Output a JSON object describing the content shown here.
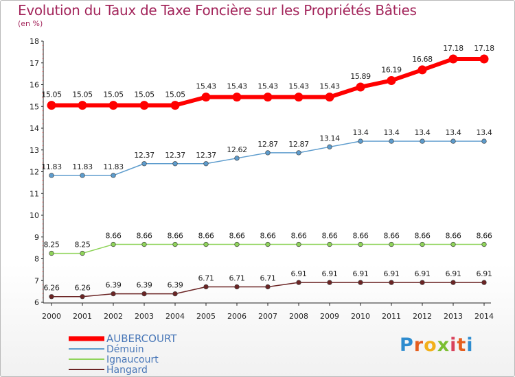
{
  "title": "Evolution du Taux de Taxe Foncière sur les Propriétés Bâties",
  "unit_label": "(en %)",
  "logo_text": "Proxiti",
  "chart_data": {
    "type": "line",
    "x": [
      "2000",
      "2001",
      "2002",
      "2003",
      "2004",
      "2005",
      "2006",
      "2007",
      "2008",
      "2009",
      "2010",
      "2011",
      "2012",
      "2013",
      "2014"
    ],
    "y_ticks": [
      "6",
      "7",
      "8",
      "9",
      "10",
      "11",
      "12",
      "13",
      "14",
      "15",
      "16",
      "17",
      "18"
    ],
    "ylim": [
      6,
      18
    ],
    "grid": false,
    "legend_position": "bottom-left",
    "series": [
      {
        "name": "AUBERCOURT",
        "color": "#ff0000",
        "values": [
          15.05,
          15.05,
          15.05,
          15.05,
          15.05,
          15.43,
          15.43,
          15.43,
          15.43,
          15.43,
          15.89,
          16.19,
          16.68,
          17.18,
          17.18
        ],
        "labels": [
          "15.05",
          "15.05",
          "15.05",
          "15.05",
          "15.05",
          "15.43",
          "15.43",
          "15.43",
          "15.43",
          "15.43",
          "15.89",
          "16.19",
          "16.68",
          "17.18",
          "17.18"
        ]
      },
      {
        "name": "Démuin",
        "color": "#5d9ccd",
        "values": [
          11.83,
          11.83,
          11.83,
          12.37,
          12.37,
          12.37,
          12.62,
          12.87,
          12.87,
          13.14,
          13.4,
          13.4,
          13.4,
          13.4,
          13.4
        ],
        "labels": [
          "11.83",
          "11.83",
          "11.83",
          "12.37",
          "12.37",
          "12.37",
          "12.62",
          "12.87",
          "12.87",
          "13.14",
          "13.4",
          "13.4",
          "13.4",
          "13.4",
          "13.4"
        ]
      },
      {
        "name": "Ignaucourt",
        "color": "#8fd45a",
        "values": [
          8.25,
          8.25,
          8.66,
          8.66,
          8.66,
          8.66,
          8.66,
          8.66,
          8.66,
          8.66,
          8.66,
          8.66,
          8.66,
          8.66,
          8.66
        ],
        "labels": [
          "8.25",
          "8.25",
          "8.66",
          "8.66",
          "8.66",
          "8.66",
          "8.66",
          "8.66",
          "8.66",
          "8.66",
          "8.66",
          "8.66",
          "8.66",
          "8.66",
          "8.66"
        ]
      },
      {
        "name": "Hangard",
        "color": "#6b2424",
        "values": [
          6.26,
          6.26,
          6.39,
          6.39,
          6.39,
          6.71,
          6.71,
          6.71,
          6.91,
          6.91,
          6.91,
          6.91,
          6.91,
          6.91,
          6.91
        ],
        "labels": [
          "6.26",
          "6.26",
          "6.39",
          "6.39",
          "6.39",
          "6.71",
          "6.71",
          "6.71",
          "6.91",
          "6.91",
          "6.91",
          "6.91",
          "6.91",
          "6.91",
          "6.91"
        ]
      }
    ]
  }
}
